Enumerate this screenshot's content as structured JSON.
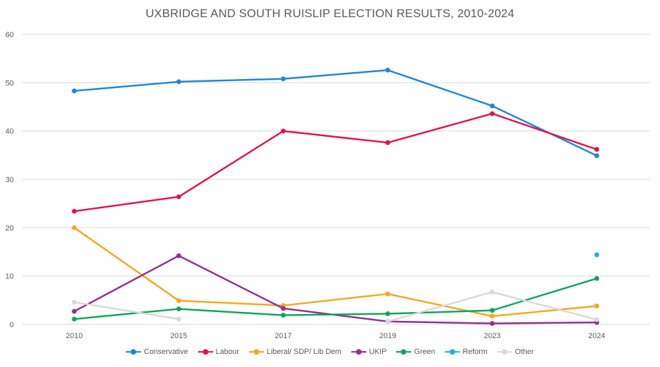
{
  "chart_data": {
    "type": "line",
    "title": "UXBRIDGE AND SOUTH RUISLIP ELECTION RESULTS, 2010-2024",
    "categories": [
      "2010",
      "2015",
      "2017",
      "2019",
      "2023",
      "2024"
    ],
    "ylim": [
      0,
      60
    ],
    "yticks": [
      "0",
      "10",
      "20",
      "30",
      "40",
      "50",
      "60"
    ],
    "grid": true,
    "legend": "bottom",
    "series": [
      {
        "name": "Conservative",
        "color": "#1f86d6",
        "values": [
          48.3,
          50.2,
          50.8,
          52.6,
          45.2,
          34.9
        ]
      },
      {
        "name": "Labour",
        "color": "#e0144c",
        "values": [
          23.4,
          26.4,
          40.0,
          37.6,
          43.6,
          36.2
        ]
      },
      {
        "name": "Liberal/ SDP/ Lib Dem",
        "color": "#f6a61e",
        "values": [
          20.0,
          4.9,
          3.9,
          6.3,
          1.7,
          3.8
        ]
      },
      {
        "name": "UKIP",
        "color": "#93308f",
        "values": [
          2.7,
          14.2,
          3.3,
          0.6,
          0.2,
          0.4
        ]
      },
      {
        "name": "Green",
        "color": "#0ea55a",
        "values": [
          1.1,
          3.2,
          1.9,
          2.2,
          2.9,
          9.5
        ]
      },
      {
        "name": "Reform",
        "color": "#22b2d3",
        "values": [
          null,
          null,
          null,
          null,
          null,
          14.4
        ]
      },
      {
        "name": "Other",
        "color": "#d9d9d9",
        "values": [
          4.6,
          1.1,
          null,
          0.6,
          6.7,
          1.0
        ]
      }
    ]
  }
}
